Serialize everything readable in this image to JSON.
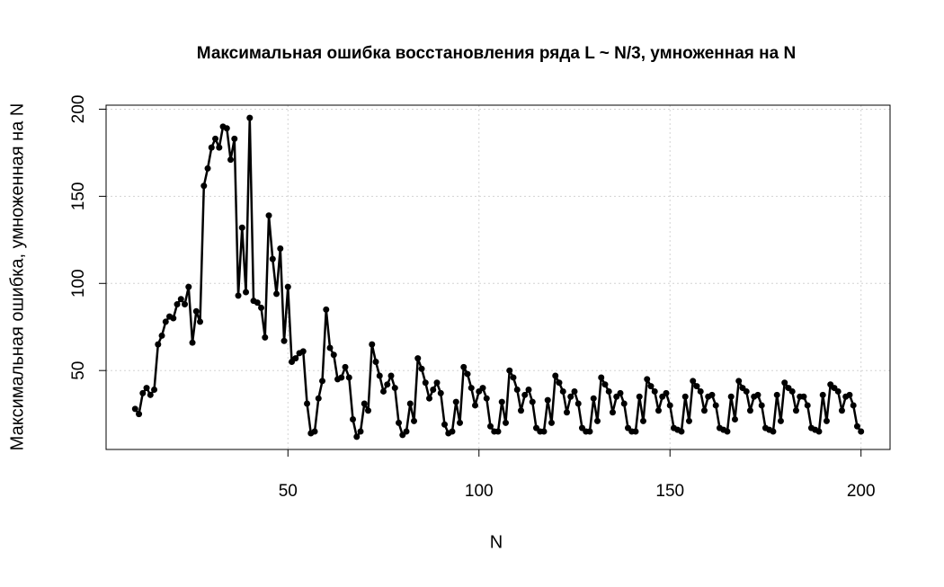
{
  "chart_data": {
    "type": "line",
    "title": "Максимальная ошибка восстановления ряда L ~ N/3, умноженная на N",
    "x_label": "N",
    "y_label": "Максимальная ошибка, умноженная на N",
    "x": [
      10,
      11,
      12,
      13,
      14,
      15,
      16,
      17,
      18,
      19,
      20,
      21,
      22,
      23,
      24,
      25,
      26,
      27,
      28,
      29,
      30,
      31,
      32,
      33,
      34,
      35,
      36,
      37,
      38,
      39,
      40,
      41,
      42,
      43,
      44,
      45,
      46,
      47,
      48,
      49,
      50,
      51,
      52,
      53,
      54,
      55,
      56,
      57,
      58,
      59,
      60,
      61,
      62,
      63,
      64,
      65,
      66,
      67,
      68,
      69,
      70,
      71,
      72,
      73,
      74,
      75,
      76,
      77,
      78,
      79,
      80,
      81,
      82,
      83,
      84,
      85,
      86,
      87,
      88,
      89,
      90,
      91,
      92,
      93,
      94,
      95,
      96,
      97,
      98,
      99,
      100,
      101,
      102,
      103,
      104,
      105,
      106,
      107,
      108,
      109,
      110,
      111,
      112,
      113,
      114,
      115,
      116,
      117,
      118,
      119,
      120,
      121,
      122,
      123,
      124,
      125,
      126,
      127,
      128,
      129,
      130,
      131,
      132,
      133,
      134,
      135,
      136,
      137,
      138,
      139,
      140,
      141,
      142,
      143,
      144,
      145,
      146,
      147,
      148,
      149,
      150,
      151,
      152,
      153,
      154,
      155,
      156,
      157,
      158,
      159,
      160,
      161,
      162,
      163,
      164,
      165,
      166,
      167,
      168,
      169,
      170,
      171,
      172,
      173,
      174,
      175,
      176,
      177,
      178,
      179,
      180,
      181,
      182,
      183,
      184,
      185,
      186,
      187,
      188,
      189,
      190,
      191,
      192,
      193,
      194,
      195,
      196,
      197,
      198,
      199,
      200
    ],
    "values": [
      28,
      25,
      37,
      40,
      36,
      39,
      65,
      70,
      78,
      81,
      80,
      88,
      91,
      88,
      98,
      66,
      84,
      78,
      156,
      166,
      178,
      183,
      178,
      190,
      189,
      171,
      183,
      93,
      132,
      95,
      195,
      90,
      89,
      86,
      69,
      139,
      114,
      94,
      120,
      67,
      98,
      55,
      57,
      60,
      61,
      31,
      14,
      15,
      34,
      44,
      85,
      63,
      59,
      45,
      46,
      52,
      46,
      22,
      12,
      15,
      31,
      27,
      65,
      55,
      47,
      38,
      42,
      47,
      40,
      20,
      13,
      15,
      31,
      21,
      57,
      51,
      43,
      34,
      39,
      43,
      37,
      19,
      14,
      15,
      32,
      20,
      52,
      48,
      40,
      30,
      38,
      40,
      34,
      18,
      15,
      15,
      32,
      20,
      50,
      46,
      39,
      27,
      36,
      39,
      32,
      17,
      15,
      15,
      33,
      20,
      47,
      43,
      38,
      26,
      35,
      38,
      31,
      17,
      15,
      15,
      34,
      21,
      46,
      42,
      38,
      26,
      35,
      37,
      31,
      17,
      15,
      15,
      35,
      21,
      45,
      41,
      38,
      27,
      35,
      37,
      30,
      17,
      16,
      15,
      35,
      21,
      44,
      41,
      38,
      27,
      35,
      36,
      30,
      17,
      16,
      15,
      35,
      22,
      44,
      40,
      38,
      27,
      35,
      36,
      30,
      17,
      16,
      15,
      36,
      21,
      43,
      40,
      38,
      27,
      35,
      35,
      30,
      17,
      16,
      15,
      36,
      21,
      42,
      40,
      38,
      27,
      35,
      36,
      30,
      18,
      15
    ],
    "color": "#000000",
    "xlim": [
      2.4,
      207.6
    ],
    "ylim": [
      4.7,
      202.3
    ],
    "xticks": [
      50,
      100,
      150,
      200
    ],
    "yticks": [
      50,
      100,
      150,
      200
    ],
    "grid": true
  }
}
